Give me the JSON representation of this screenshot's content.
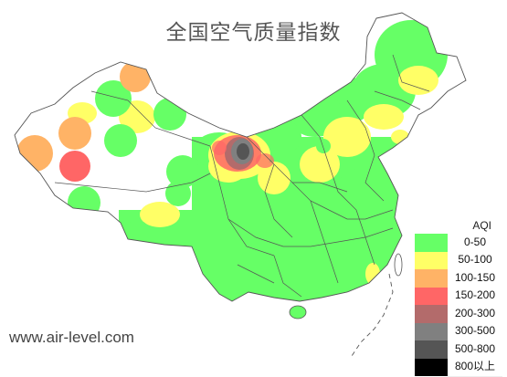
{
  "map": {
    "title": "全国空气质量指数",
    "watermark": "www.air-level.com"
  },
  "colors": {
    "land": "#ffffff",
    "outline": "#555555",
    "province_lines": "#444444",
    "good": "#66ff66",
    "moderate": "#ffff66",
    "usg": "#ffb366",
    "unhealthy": "#ff6666",
    "very_unhealthy": "#b36b6b",
    "hazardous": "#808080",
    "severe": "#555555",
    "extreme": "#000000"
  },
  "legend": {
    "title": "AQI",
    "items": [
      {
        "label": "0-50",
        "color": "#66ff66"
      },
      {
        "label": "50-100",
        "color": "#ffff66"
      },
      {
        "label": "100-150",
        "color": "#ffb366"
      },
      {
        "label": "150-200",
        "color": "#ff6666"
      },
      {
        "label": "200-300",
        "color": "#b36b6b"
      },
      {
        "label": "300-500",
        "color": "#808080"
      },
      {
        "label": "500-800",
        "color": "#555555"
      },
      {
        "label": "800以上",
        "color": "#000000"
      }
    ]
  }
}
